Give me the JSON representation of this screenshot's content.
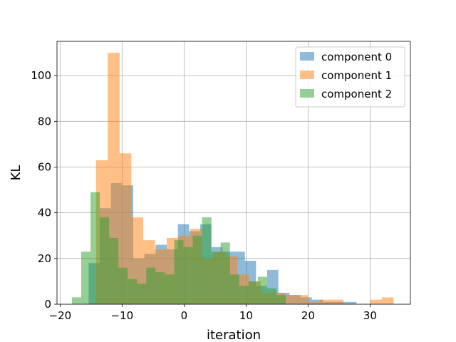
{
  "chart_data": {
    "type": "histogram",
    "title": "",
    "xlabel": "iteration",
    "ylabel": "KL",
    "xlim": [
      -20.5,
      36.5
    ],
    "ylim": [
      0,
      115
    ],
    "xticks": [
      -20,
      -10,
      0,
      10,
      20,
      30
    ],
    "yticks": [
      0,
      20,
      40,
      60,
      80,
      100
    ],
    "xtick_labels": [
      "−20",
      "−10",
      "0",
      "10",
      "20",
      "30"
    ],
    "ytick_labels": [
      "0",
      "20",
      "40",
      "60",
      "80",
      "100"
    ],
    "grid": true,
    "legend_position": "top-right",
    "series": [
      {
        "name": "component 0",
        "color": "#1f77b4",
        "bins": [
          {
            "x0": -15.4,
            "x1": -13.6,
            "count": 18
          },
          {
            "x0": -13.6,
            "x1": -11.8,
            "count": 42
          },
          {
            "x0": -11.8,
            "x1": -10.0,
            "count": 53
          },
          {
            "x0": -10.0,
            "x1": -8.2,
            "count": 52
          },
          {
            "x0": -8.2,
            "x1": -6.4,
            "count": 20
          },
          {
            "x0": -6.4,
            "x1": -4.6,
            "count": 22
          },
          {
            "x0": -4.6,
            "x1": -2.8,
            "count": 26
          },
          {
            "x0": -2.8,
            "x1": -1.0,
            "count": 24
          },
          {
            "x0": -1.0,
            "x1": 0.8,
            "count": 35
          },
          {
            "x0": 0.8,
            "x1": 2.6,
            "count": 32
          },
          {
            "x0": 2.6,
            "x1": 4.4,
            "count": 35
          },
          {
            "x0": 4.4,
            "x1": 6.2,
            "count": 25
          },
          {
            "x0": 6.2,
            "x1": 8.0,
            "count": 23
          },
          {
            "x0": 8.0,
            "x1": 9.8,
            "count": 23
          },
          {
            "x0": 9.8,
            "x1": 11.6,
            "count": 19
          },
          {
            "x0": 11.6,
            "x1": 13.4,
            "count": 8
          },
          {
            "x0": 13.4,
            "x1": 15.2,
            "count": 15
          },
          {
            "x0": 15.2,
            "x1": 17.0,
            "count": 5
          },
          {
            "x0": 17.0,
            "x1": 18.8,
            "count": 4
          },
          {
            "x0": 18.8,
            "x1": 20.6,
            "count": 3
          },
          {
            "x0": 20.6,
            "x1": 22.4,
            "count": 2
          },
          {
            "x0": 22.4,
            "x1": 24.2,
            "count": 1
          },
          {
            "x0": 24.2,
            "x1": 26.0,
            "count": 1
          },
          {
            "x0": 26.0,
            "x1": 27.8,
            "count": 1
          }
        ]
      },
      {
        "name": "component 1",
        "color": "#ff7f0e",
        "bins": [
          {
            "x0": -14.2,
            "x1": -12.3,
            "count": 63
          },
          {
            "x0": -12.3,
            "x1": -10.4,
            "count": 110
          },
          {
            "x0": -10.4,
            "x1": -8.5,
            "count": 66
          },
          {
            "x0": -8.5,
            "x1": -6.6,
            "count": 38
          },
          {
            "x0": -6.6,
            "x1": -4.7,
            "count": 28
          },
          {
            "x0": -4.7,
            "x1": -2.8,
            "count": 24
          },
          {
            "x0": -2.8,
            "x1": -0.9,
            "count": 29
          },
          {
            "x0": -0.9,
            "x1": 1.0,
            "count": 30
          },
          {
            "x0": 1.0,
            "x1": 2.9,
            "count": 33
          },
          {
            "x0": 2.9,
            "x1": 4.8,
            "count": 20
          },
          {
            "x0": 4.8,
            "x1": 6.7,
            "count": 23
          },
          {
            "x0": 6.7,
            "x1": 8.6,
            "count": 21
          },
          {
            "x0": 8.6,
            "x1": 10.5,
            "count": 13
          },
          {
            "x0": 10.5,
            "x1": 12.4,
            "count": 10
          },
          {
            "x0": 12.4,
            "x1": 14.3,
            "count": 5
          },
          {
            "x0": 14.3,
            "x1": 16.2,
            "count": 5
          },
          {
            "x0": 16.2,
            "x1": 18.1,
            "count": 4
          },
          {
            "x0": 18.1,
            "x1": 20.0,
            "count": 4
          },
          {
            "x0": 20.0,
            "x1": 21.9,
            "count": 1
          },
          {
            "x0": 21.9,
            "x1": 23.8,
            "count": 2
          },
          {
            "x0": 23.8,
            "x1": 25.7,
            "count": 2
          },
          {
            "x0": 30.0,
            "x1": 31.9,
            "count": 2
          },
          {
            "x0": 31.9,
            "x1": 33.8,
            "count": 3
          }
        ]
      },
      {
        "name": "component 2",
        "color": "#2ca02c",
        "bins": [
          {
            "x0": -18.1,
            "x1": -16.6,
            "count": 3
          },
          {
            "x0": -16.6,
            "x1": -15.1,
            "count": 23
          },
          {
            "x0": -15.1,
            "x1": -13.6,
            "count": 49
          },
          {
            "x0": -13.6,
            "x1": -12.1,
            "count": 38
          },
          {
            "x0": -12.1,
            "x1": -10.6,
            "count": 29
          },
          {
            "x0": -10.6,
            "x1": -9.1,
            "count": 16
          },
          {
            "x0": -9.1,
            "x1": -7.6,
            "count": 11
          },
          {
            "x0": -7.6,
            "x1": -6.1,
            "count": 9
          },
          {
            "x0": -6.1,
            "x1": -4.6,
            "count": 16
          },
          {
            "x0": -4.6,
            "x1": -3.1,
            "count": 14
          },
          {
            "x0": -3.1,
            "x1": -1.6,
            "count": 13
          },
          {
            "x0": -1.6,
            "x1": -0.1,
            "count": 28
          },
          {
            "x0": -0.1,
            "x1": 1.4,
            "count": 25
          },
          {
            "x0": 1.4,
            "x1": 2.9,
            "count": 30
          },
          {
            "x0": 2.9,
            "x1": 4.4,
            "count": 38
          },
          {
            "x0": 4.4,
            "x1": 5.9,
            "count": 23
          },
          {
            "x0": 5.9,
            "x1": 7.4,
            "count": 27
          },
          {
            "x0": 7.4,
            "x1": 8.9,
            "count": 13
          },
          {
            "x0": 8.9,
            "x1": 10.4,
            "count": 8
          },
          {
            "x0": 10.4,
            "x1": 11.9,
            "count": 10
          },
          {
            "x0": 11.9,
            "x1": 13.4,
            "count": 12
          },
          {
            "x0": 13.4,
            "x1": 14.9,
            "count": 7
          },
          {
            "x0": 14.9,
            "x1": 16.4,
            "count": 4
          }
        ]
      }
    ]
  }
}
